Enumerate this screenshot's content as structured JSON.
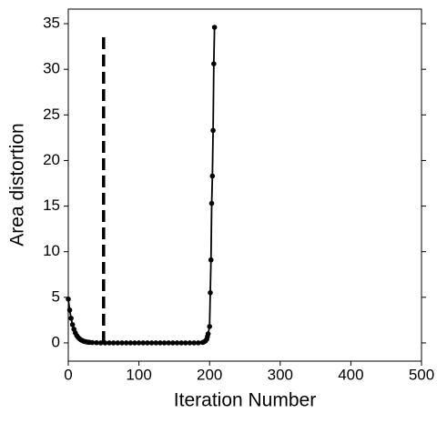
{
  "chart_data": {
    "type": "line",
    "x_label": "Iteration Number",
    "y_label": "Area distortion",
    "x": [
      0,
      2,
      4,
      6,
      8,
      10,
      12,
      14,
      16,
      18,
      20,
      22,
      24,
      26,
      28,
      30,
      34,
      40,
      46,
      52,
      58,
      64,
      70,
      76,
      82,
      88,
      94,
      100,
      106,
      112,
      118,
      124,
      130,
      136,
      142,
      148,
      154,
      160,
      166,
      172,
      178,
      184,
      190,
      192,
      194,
      196,
      197,
      198,
      200,
      201,
      202,
      203,
      204,
      205,
      206,
      207
    ],
    "series": [
      {
        "color": "#000000",
        "values": [
          4.8,
          3.6,
          2.7,
          2.0,
          1.5,
          1.1,
          0.8,
          0.6,
          0.45,
          0.33,
          0.25,
          0.18,
          0.14,
          0.1,
          0.08,
          0.06,
          0.04,
          0.02,
          0,
          0,
          0,
          0,
          0,
          0,
          0,
          0,
          0,
          0,
          0,
          0,
          0,
          0,
          0,
          0,
          0,
          0,
          0,
          0,
          0,
          0,
          0,
          0,
          0.05,
          0.1,
          0.2,
          0.4,
          0.7,
          1.0,
          1.8,
          5.5,
          9.1,
          15.3,
          18.3,
          23.3,
          30.6,
          34.6
        ]
      }
    ],
    "vline": {
      "x": 50,
      "ymin": 0,
      "ymax": 34,
      "color": "#000000"
    },
    "xlim": [
      0,
      500
    ],
    "xticks": [
      0,
      100,
      200,
      300,
      400,
      500
    ],
    "ylim": [
      -2,
      36.6
    ],
    "yticks": [
      0,
      5,
      10,
      15,
      20,
      25,
      30,
      35
    ],
    "grid": false
  }
}
